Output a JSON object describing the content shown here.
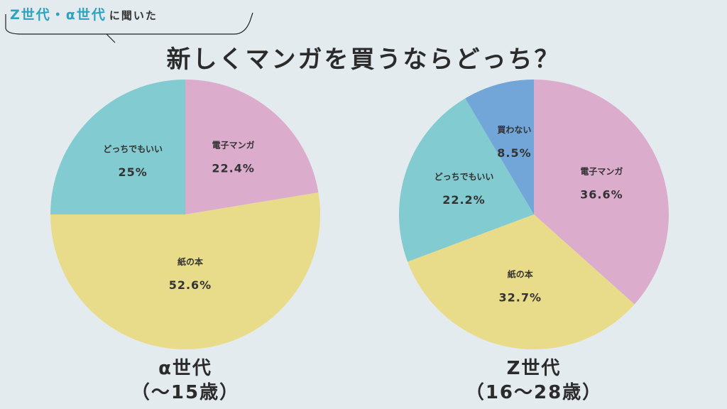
{
  "header": {
    "tag_highlight": "Z世代・α世代",
    "tag_rest": "に聞いた",
    "title": "新しくマンガを買うならどっち？"
  },
  "chart_data": [
    {
      "type": "pie",
      "title": "α世代",
      "subtitle": "（〜15歳）",
      "slices": [
        {
          "label": "電子マンガ",
          "value": 22.4,
          "value_text": "22.4%",
          "color": "#dcaccd"
        },
        {
          "label": "紙の本",
          "value": 52.6,
          "value_text": "52.6%",
          "color": "#e8dc8a"
        },
        {
          "label": "どっちでもいい",
          "value": 25,
          "value_text": "25%",
          "color": "#82cbd0"
        }
      ]
    },
    {
      "type": "pie",
      "title": "Z世代",
      "subtitle": "（16〜28歳）",
      "slices": [
        {
          "label": "電子マンガ",
          "value": 36.6,
          "value_text": "36.6%",
          "color": "#dcaccd"
        },
        {
          "label": "紙の本",
          "value": 32.7,
          "value_text": "32.7%",
          "color": "#e8dc8a"
        },
        {
          "label": "どっちでもいい",
          "value": 22.2,
          "value_text": "22.2%",
          "color": "#82cbd0"
        },
        {
          "label": "買わない",
          "value": 8.5,
          "value_text": "8.5%",
          "color": "#72a6d8"
        }
      ]
    }
  ]
}
